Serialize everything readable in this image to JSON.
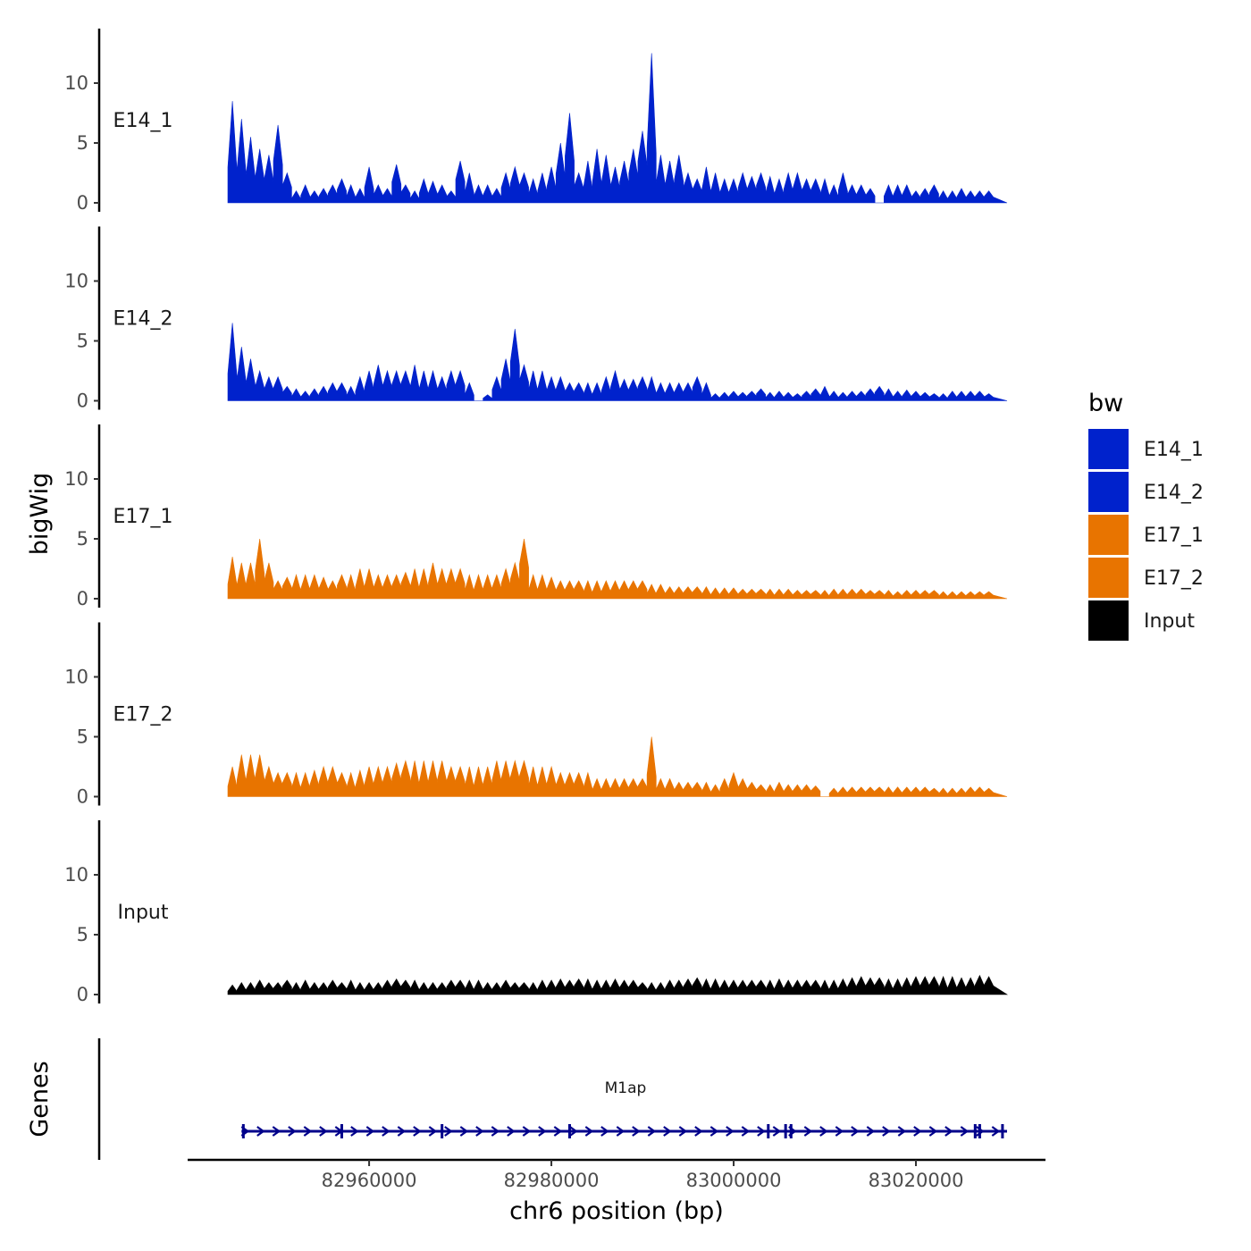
{
  "chart_data": {
    "type": "area",
    "title": "",
    "xlabel": "chr6 position (bp)",
    "ylabel": "bigWig",
    "genes_axis_label": "Genes",
    "xlim": [
      82944500,
      83030000
    ],
    "x_ticks": [
      82960000,
      82980000,
      83000000,
      83020000
    ],
    "x_tick_labels": [
      "82960000",
      "82980000",
      "83000000",
      "83020000"
    ],
    "ylim": [
      0,
      14.5
    ],
    "y_ticks": [
      0,
      5,
      10
    ],
    "y_tick_labels": [
      "0",
      "5",
      "10"
    ],
    "legend": {
      "title": "bw",
      "position": "right",
      "entries": [
        {
          "label": "E14_1",
          "color": "#0022CC"
        },
        {
          "label": "E14_2",
          "color": "#0022CC"
        },
        {
          "label": "E17_1",
          "color": "#E87400"
        },
        {
          "label": "E17_2",
          "color": "#E87400"
        },
        {
          "label": "Input",
          "color": "#000000"
        }
      ]
    },
    "tracks": [
      {
        "name": "E14_1",
        "color": "#0022CC",
        "x_start": 82944500,
        "x_step": 1000,
        "values": [
          8.5,
          7.0,
          5.5,
          4.5,
          4.0,
          6.5,
          2.5,
          1.0,
          1.5,
          1.0,
          1.2,
          1.5,
          2.0,
          1.5,
          1.2,
          3.0,
          1.5,
          1.2,
          3.2,
          1.5,
          1.0,
          2.0,
          1.8,
          1.5,
          1.0,
          3.5,
          2.5,
          1.5,
          1.5,
          1.2,
          2.5,
          3.0,
          2.5,
          2.0,
          2.5,
          3.0,
          5.0,
          7.5,
          2.5,
          3.5,
          4.5,
          4.0,
          3.0,
          3.5,
          4.5,
          6.0,
          12.5,
          4.0,
          3.5,
          4.0,
          2.5,
          2.0,
          3.0,
          2.5,
          2.0,
          2.0,
          2.5,
          2.2,
          2.5,
          2.2,
          2.0,
          2.5,
          2.5,
          2.0,
          2.0,
          2.0,
          1.5,
          2.5,
          1.5,
          1.5,
          1.2,
          0.0,
          1.5,
          1.5,
          1.5,
          1.0,
          1.2,
          1.5,
          1.0,
          1.0,
          1.2,
          1.0,
          1.0,
          1.0
        ]
      },
      {
        "name": "E14_2",
        "color": "#0022CC",
        "x_start": 82944500,
        "x_step": 1000,
        "values": [
          6.5,
          4.5,
          3.5,
          2.5,
          2.0,
          2.0,
          1.2,
          1.0,
          0.8,
          1.0,
          1.2,
          1.5,
          1.5,
          1.2,
          2.0,
          2.5,
          3.0,
          2.5,
          2.5,
          2.5,
          3.0,
          2.5,
          2.5,
          2.0,
          2.5,
          2.5,
          1.5,
          0.0,
          0.5,
          2.0,
          3.5,
          6.0,
          3.0,
          2.5,
          2.5,
          2.0,
          2.0,
          1.5,
          1.5,
          1.5,
          1.5,
          2.0,
          2.5,
          1.8,
          1.8,
          2.0,
          2.0,
          1.5,
          1.5,
          1.5,
          1.5,
          2.0,
          1.5,
          0.6,
          0.7,
          0.8,
          0.7,
          0.8,
          1.0,
          0.7,
          0.8,
          0.7,
          0.6,
          0.8,
          1.0,
          1.2,
          0.8,
          0.7,
          0.8,
          0.8,
          1.0,
          1.2,
          1.0,
          0.8,
          0.9,
          0.8,
          0.7,
          0.6,
          0.6,
          0.8,
          0.8,
          0.8,
          0.8,
          0.6
        ]
      },
      {
        "name": "E17_1",
        "color": "#E87400",
        "x_start": 82944500,
        "x_step": 1000,
        "values": [
          3.5,
          3.0,
          3.0,
          5.0,
          3.0,
          1.5,
          1.8,
          2.0,
          2.0,
          2.0,
          1.8,
          1.5,
          2.0,
          2.0,
          2.5,
          2.5,
          2.0,
          2.0,
          2.0,
          2.2,
          2.5,
          2.5,
          3.0,
          2.5,
          2.5,
          2.5,
          2.0,
          2.0,
          2.0,
          2.0,
          2.5,
          3.0,
          5.0,
          2.0,
          2.0,
          1.8,
          1.5,
          1.5,
          1.5,
          1.5,
          1.5,
          1.5,
          1.5,
          1.5,
          1.5,
          1.5,
          1.2,
          1.2,
          1.0,
          1.0,
          1.0,
          1.0,
          1.0,
          0.9,
          0.9,
          0.9,
          0.8,
          0.8,
          0.8,
          0.8,
          0.8,
          0.8,
          0.7,
          0.7,
          0.7,
          0.7,
          0.8,
          0.8,
          0.8,
          0.8,
          0.7,
          0.7,
          0.7,
          0.6,
          0.7,
          0.7,
          0.7,
          0.7,
          0.6,
          0.6,
          0.6,
          0.6,
          0.6,
          0.6
        ]
      },
      {
        "name": "E17_2",
        "color": "#E87400",
        "x_start": 82944500,
        "x_step": 1000,
        "values": [
          2.5,
          3.5,
          3.5,
          3.5,
          2.5,
          2.0,
          2.0,
          2.0,
          2.0,
          2.2,
          2.5,
          2.5,
          2.0,
          2.0,
          2.2,
          2.5,
          2.5,
          2.5,
          2.8,
          3.0,
          3.0,
          3.0,
          3.0,
          3.0,
          2.5,
          2.5,
          2.5,
          2.5,
          2.5,
          3.0,
          3.0,
          3.0,
          3.0,
          2.5,
          2.5,
          2.5,
          2.0,
          2.0,
          2.0,
          2.0,
          1.5,
          1.5,
          1.5,
          1.5,
          1.5,
          1.5,
          5.0,
          1.5,
          1.5,
          1.2,
          1.2,
          1.2,
          1.2,
          1.0,
          1.5,
          2.0,
          1.5,
          1.2,
          1.0,
          1.0,
          1.2,
          1.0,
          1.0,
          1.0,
          0.9,
          0.0,
          0.7,
          0.8,
          0.8,
          0.8,
          0.8,
          0.8,
          0.8,
          0.8,
          0.8,
          0.8,
          0.8,
          0.7,
          0.7,
          0.7,
          0.7,
          0.8,
          0.8,
          0.7
        ]
      },
      {
        "name": "Input",
        "color": "#000000",
        "x_start": 82944500,
        "x_step": 1000,
        "values": [
          0.8,
          1.0,
          1.0,
          1.2,
          1.0,
          1.0,
          1.2,
          1.0,
          1.2,
          1.0,
          1.0,
          1.2,
          1.0,
          1.2,
          1.0,
          1.0,
          1.0,
          1.2,
          1.3,
          1.2,
          1.2,
          1.0,
          1.0,
          1.0,
          1.2,
          1.2,
          1.2,
          1.2,
          1.0,
          1.0,
          1.2,
          1.0,
          1.0,
          1.0,
          1.2,
          1.2,
          1.3,
          1.2,
          1.3,
          1.3,
          1.2,
          1.2,
          1.3,
          1.2,
          1.2,
          1.0,
          1.0,
          1.0,
          1.2,
          1.2,
          1.3,
          1.4,
          1.3,
          1.3,
          1.2,
          1.2,
          1.2,
          1.2,
          1.2,
          1.2,
          1.3,
          1.2,
          1.2,
          1.2,
          1.2,
          1.2,
          1.2,
          1.3,
          1.4,
          1.5,
          1.4,
          1.4,
          1.3,
          1.3,
          1.4,
          1.5,
          1.5,
          1.5,
          1.5,
          1.5,
          1.4,
          1.4,
          1.6,
          1.5
        ]
      }
    ],
    "genes": [
      {
        "name": "M1ap",
        "start": 82946000,
        "end": 83030000,
        "strand": "+",
        "exons": [
          82946200,
          82957000,
          82968000,
          82982000,
          83003800,
          83005700,
          83006300,
          83026500,
          83027000,
          83029500
        ]
      }
    ]
  }
}
